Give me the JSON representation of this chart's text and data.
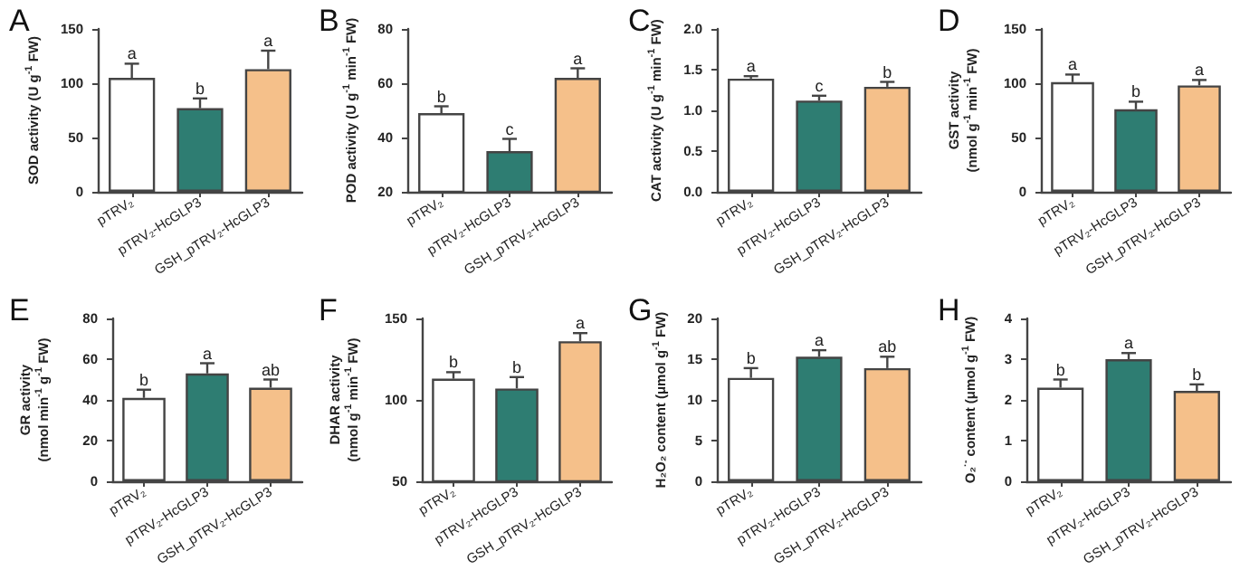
{
  "chart_data": [
    {
      "type": "bar",
      "title": "A",
      "ylabel": "SOD activity (U g$^{-1}$ FW)",
      "categories": [
        "pTRV₂",
        "pTRV₂-HcGLP3",
        "GSH_pTRV₂-HcGLP3"
      ],
      "values": [
        105,
        77,
        113
      ],
      "colors": [
        "#ffffff",
        "#2e7d72",
        "#f5c08a"
      ],
      "errors": [
        [
          105,
          118
        ],
        [
          77,
          86
        ],
        [
          113,
          130
        ]
      ],
      "ylim": [
        0,
        150
      ],
      "yticks": [
        0,
        50,
        100,
        150
      ],
      "annotations": [
        {
          "text": "a",
          "x": "pTRV₂",
          "y": 118
        },
        {
          "text": "b",
          "x": "pTRV₂-HcGLP3",
          "y": 86
        },
        {
          "text": "a",
          "x": "GSH_pTRV₂-HcGLP3",
          "y": 130
        }
      ]
    },
    {
      "type": "bar",
      "title": "B",
      "ylabel": "POD activity (U g$^{-1}$ min$^{-1}$ FW)",
      "categories": [
        "pTRV₂",
        "pTRV₂-HcGLP3",
        "GSH_pTRV₂-HcGLP3"
      ],
      "values": [
        49,
        35,
        62
      ],
      "colors": [
        "#ffffff",
        "#2e7d72",
        "#f5c08a"
      ],
      "errors": [
        [
          49,
          51.5
        ],
        [
          35,
          39.5
        ],
        [
          62,
          65.5
        ]
      ],
      "ylim": [
        20,
        80
      ],
      "yticks": [
        20,
        40,
        60,
        80
      ],
      "annotations": [
        {
          "text": "b",
          "x": "pTRV₂",
          "y": 51.5
        },
        {
          "text": "c",
          "x": "pTRV₂-HcGLP3",
          "y": 39.5
        },
        {
          "text": "a",
          "x": "GSH_pTRV₂-HcGLP3",
          "y": 65.5
        }
      ]
    },
    {
      "type": "bar",
      "title": "C",
      "ylabel": "CAT activity (U g$^{-1}$ min$^{-1}$ FW)",
      "categories": [
        "pTRV₂",
        "pTRV₂-HcGLP3",
        "GSH_pTRV₂-HcGLP3"
      ],
      "values": [
        1.39,
        1.12,
        1.29
      ],
      "colors": [
        "#ffffff",
        "#2e7d72",
        "#f5c08a"
      ],
      "errors": [
        [
          1.39,
          1.42
        ],
        [
          1.12,
          1.18
        ],
        [
          1.29,
          1.35
        ]
      ],
      "ylim": [
        0,
        2
      ],
      "yticks": [
        {
          "value": 0,
          "label": "0.0"
        },
        {
          "value": 0.5,
          "label": "0.5"
        },
        {
          "value": 1,
          "label": "1.0"
        },
        {
          "value": 1.5,
          "label": "1.5"
        },
        {
          "value": 2,
          "label": "2.0"
        }
      ],
      "annotations": [
        {
          "text": "a",
          "x": "pTRV₂",
          "y": 1.42
        },
        {
          "text": "c",
          "x": "pTRV₂-HcGLP3",
          "y": 1.18
        },
        {
          "text": "b",
          "x": "GSH_pTRV₂-HcGLP3",
          "y": 1.35
        }
      ]
    },
    {
      "type": "bar",
      "title": "D",
      "ylabel": "GST activity\n(nmol g$^{-1}$ min$^{-1}$ FW)",
      "categories": [
        "pTRV₂",
        "pTRV₂-HcGLP3",
        "GSH_pTRV₂-HcGLP3"
      ],
      "values": [
        101,
        76,
        98
      ],
      "colors": [
        "#ffffff",
        "#2e7d72",
        "#f5c08a"
      ],
      "errors": [
        [
          101,
          108
        ],
        [
          76,
          83
        ],
        [
          98,
          103
        ]
      ],
      "ylim": [
        0,
        150
      ],
      "yticks": [
        0,
        50,
        100,
        150
      ],
      "annotations": [
        {
          "text": "a",
          "x": "pTRV₂",
          "y": 108
        },
        {
          "text": "b",
          "x": "pTRV₂-HcGLP3",
          "y": 83
        },
        {
          "text": "a",
          "x": "GSH_pTRV₂-HcGLP3",
          "y": 103
        }
      ]
    },
    {
      "type": "bar",
      "title": "E",
      "ylabel": "GR activity\n(nmol min$^{-1}$ g$^{-1}$ FW)",
      "categories": [
        "pTRV₂",
        "pTRV₂-HcGLP3",
        "GSH_pTRV₂-HcGLP3"
      ],
      "values": [
        41,
        53,
        46
      ],
      "colors": [
        "#ffffff",
        "#2e7d72",
        "#f5c08a"
      ],
      "errors": [
        [
          41,
          45
        ],
        [
          53,
          58
        ],
        [
          46,
          50
        ]
      ],
      "ylim": [
        0,
        80
      ],
      "yticks": [
        0,
        20,
        40,
        60,
        80
      ],
      "annotations": [
        {
          "text": "b",
          "x": "pTRV₂",
          "y": 45
        },
        {
          "text": "a",
          "x": "pTRV₂-HcGLP3",
          "y": 58
        },
        {
          "text": "ab",
          "x": "GSH_pTRV₂-HcGLP3",
          "y": 50
        }
      ]
    },
    {
      "type": "bar",
      "title": "F",
      "ylabel": "DHAR activity\n(nmol g$^{-1}$ min$^{-1}$ FW)",
      "categories": [
        "pTRV₂",
        "pTRV₂-HcGLP3",
        "GSH_pTRV₂-HcGLP3"
      ],
      "values": [
        113,
        107,
        136
      ],
      "colors": [
        "#ffffff",
        "#2e7d72",
        "#f5c08a"
      ],
      "errors": [
        [
          113,
          117
        ],
        [
          107,
          114
        ],
        [
          136,
          141
        ]
      ],
      "ylim": [
        50,
        150
      ],
      "yticks": [
        50,
        100,
        150
      ],
      "annotations": [
        {
          "text": "b",
          "x": "pTRV₂",
          "y": 117
        },
        {
          "text": "b",
          "x": "pTRV₂-HcGLP3",
          "y": 114
        },
        {
          "text": "a",
          "x": "GSH_pTRV₂-HcGLP3",
          "y": 141
        }
      ]
    },
    {
      "type": "bar",
      "title": "G",
      "ylabel": "H₂O₂ content (μmol g$^{-1}$ FW)",
      "categories": [
        "pTRV₂",
        "pTRV₂-HcGLP3",
        "GSH_pTRV₂-HcGLP3"
      ],
      "values": [
        12.7,
        15.3,
        13.9
      ],
      "colors": [
        "#ffffff",
        "#2e7d72",
        "#f5c08a"
      ],
      "errors": [
        [
          12.7,
          13.9
        ],
        [
          15.3,
          16.1
        ],
        [
          13.9,
          15.3
        ]
      ],
      "ylim": [
        0,
        20
      ],
      "yticks": [
        0,
        5,
        10,
        15,
        20
      ],
      "annotations": [
        {
          "text": "b",
          "x": "pTRV₂",
          "y": 13.9
        },
        {
          "text": "a",
          "x": "pTRV₂-HcGLP3",
          "y": 16.1
        },
        {
          "text": "ab",
          "x": "GSH_pTRV₂-HcGLP3",
          "y": 15.3
        }
      ]
    },
    {
      "type": "bar",
      "title": "H",
      "ylabel": "O₂$^{·-}$ content (μmol g$^{-1}$ FW)",
      "categories": [
        "pTRV₂",
        "pTRV₂-HcGLP3",
        "GSH_pTRV₂-HcGLP3"
      ],
      "values": [
        2.3,
        3.0,
        2.22
      ],
      "colors": [
        "#ffffff",
        "#2e7d72",
        "#f5c08a"
      ],
      "errors": [
        [
          2.3,
          2.5
        ],
        [
          3.0,
          3.15
        ],
        [
          2.22,
          2.38
        ]
      ],
      "ylim": [
        0,
        4
      ],
      "yticks": [
        0,
        1,
        2,
        3,
        4
      ],
      "annotations": [
        {
          "text": "b",
          "x": "pTRV₂",
          "y": 2.5
        },
        {
          "text": "a",
          "x": "pTRV₂-HcGLP3",
          "y": 3.15
        },
        {
          "text": "b",
          "x": "GSH_pTRV₂-HcGLP3",
          "y": 2.38
        }
      ]
    }
  ]
}
